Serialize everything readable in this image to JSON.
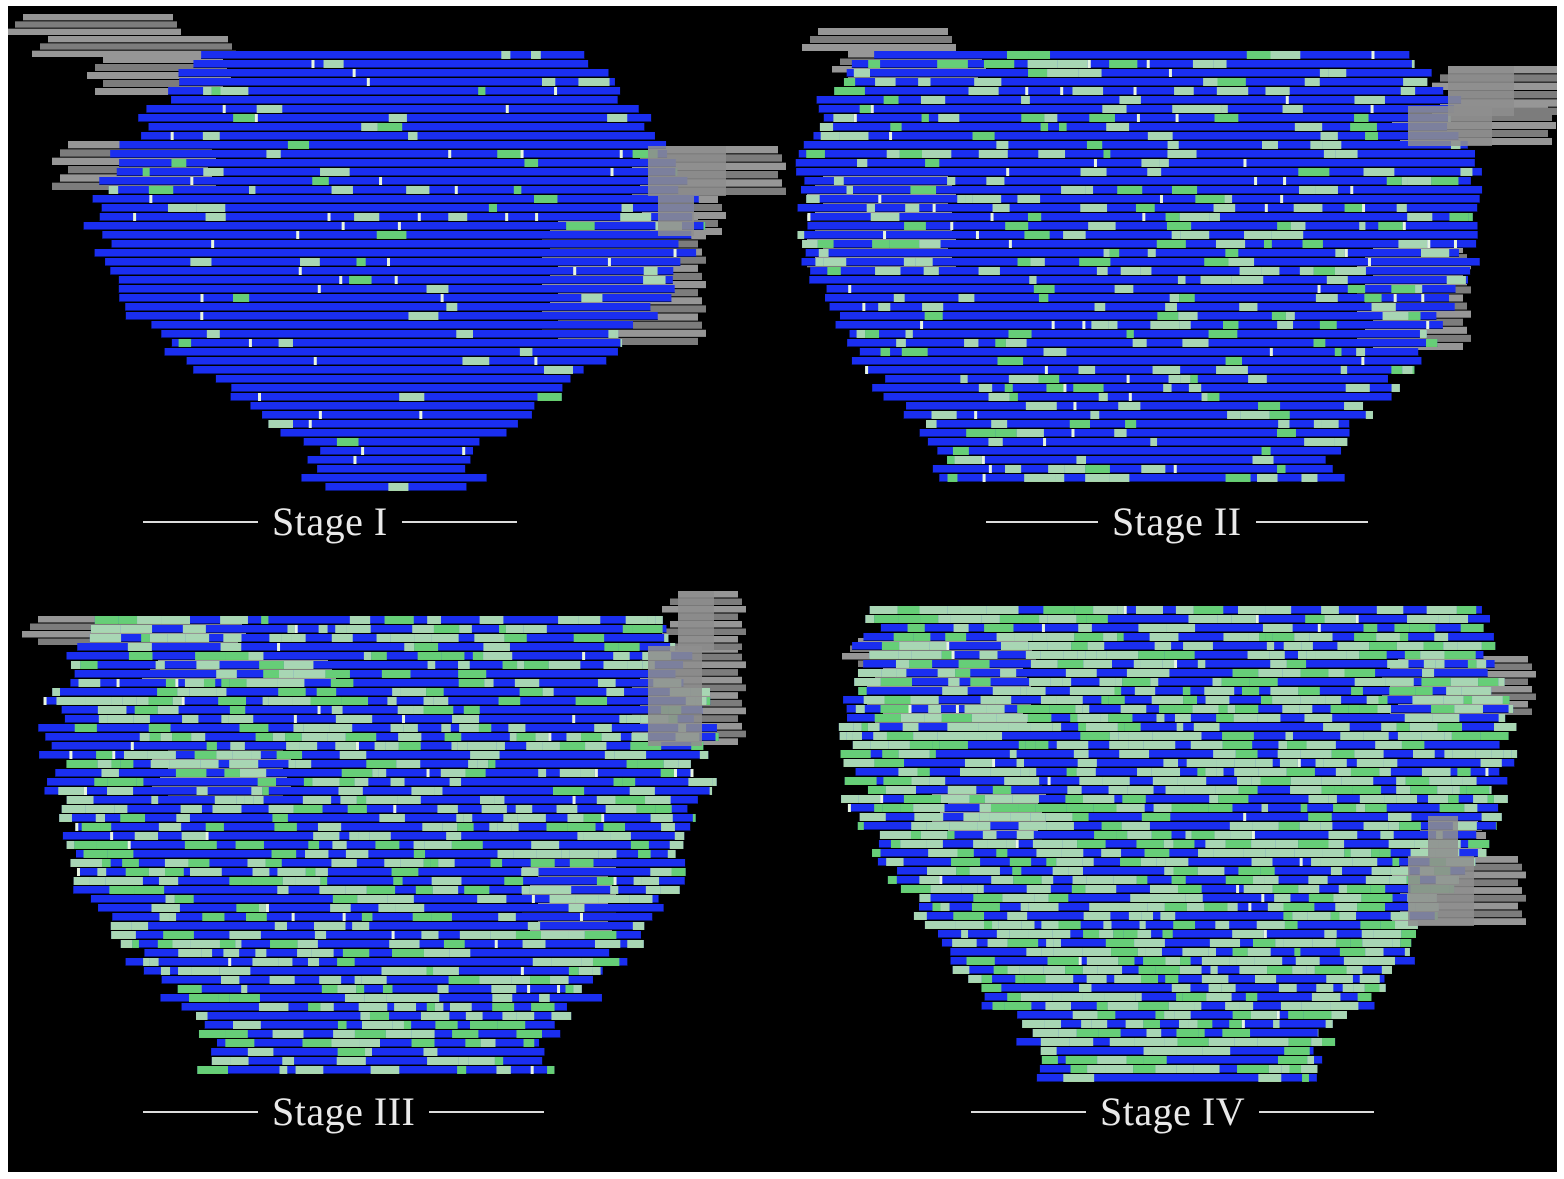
{
  "panels": [
    {
      "id": "stage-1",
      "label": "Stage I"
    },
    {
      "id": "stage-2",
      "label": "Stage II"
    },
    {
      "id": "stage-3",
      "label": "Stage III"
    },
    {
      "id": "stage-4",
      "label": "Stage IV"
    }
  ],
  "colors": {
    "background": "#000000",
    "healthy": "#1a2ef0",
    "affected": "#b8e9ad",
    "affected_bright": "#6fe06a",
    "structure": "#8a8a8a",
    "caption": "#e9e9e9"
  },
  "affected_level": [
    0.06,
    0.22,
    0.42,
    0.6
  ]
}
